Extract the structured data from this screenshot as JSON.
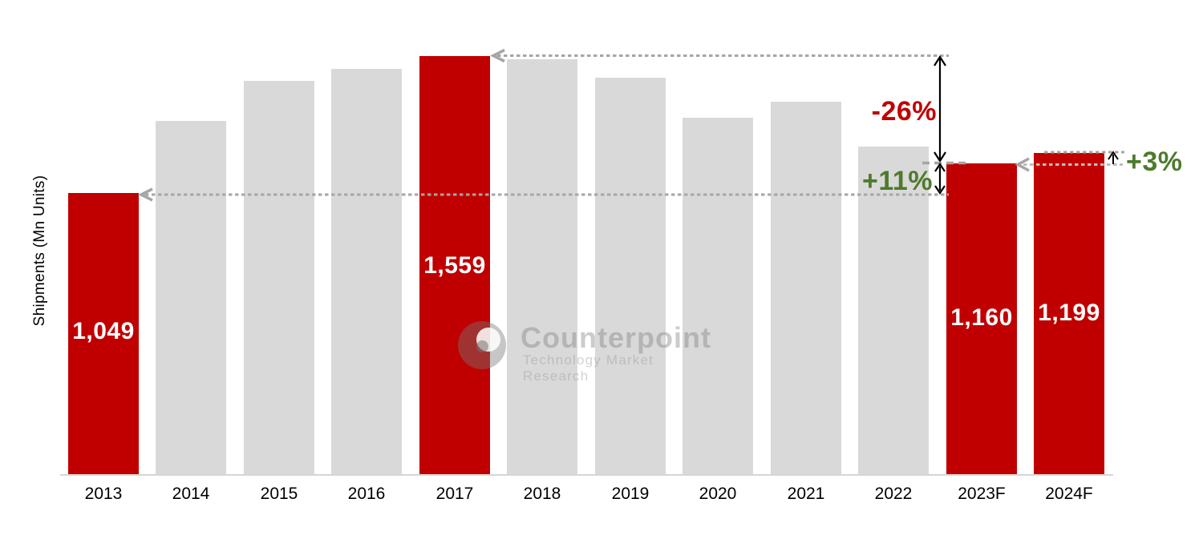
{
  "chart_data": {
    "type": "bar",
    "title": "",
    "ylabel": "Shipments (Mn Units)",
    "xlabel": "",
    "grid": false,
    "legend": "none",
    "ylim": [
      0,
      1770
    ],
    "categories": [
      "2013",
      "2014",
      "2015",
      "2016",
      "2017",
      "2018",
      "2019",
      "2020",
      "2021",
      "2022",
      "2023F",
      "2024F"
    ],
    "values": [
      1049,
      1317,
      1465,
      1512,
      1559,
      1546,
      1478,
      1330,
      1390,
      1220,
      1160,
      1199
    ],
    "highlight_categories": [
      "2013",
      "2017",
      "2023F",
      "2024F"
    ],
    "value_labels": {
      "2013": "1,049",
      "2017": "1,559",
      "2023F": "1,160",
      "2024F": "1,199"
    },
    "colors": {
      "highlight_bar": "#C00000",
      "default_bar": "#D9D9D9",
      "value_label_text": "#FFFFFF",
      "axis_line": "#D6D6D6",
      "dashed_line": "#A6A6A6",
      "arrow_black": "#000000",
      "decline_text": "#C00000",
      "growth_text": "#4E7B2B",
      "tick_text": "#000000"
    },
    "annotations": [
      {
        "id": "decline-2017-to-2023",
        "text": "-26%",
        "color": "#C00000"
      },
      {
        "id": "growth-2013-to-2023",
        "text": "+11%",
        "color": "#4E7B2B"
      },
      {
        "id": "growth-2023-to-2024",
        "text": "+3%",
        "color": "#4E7B2B"
      }
    ]
  },
  "watermark": {
    "name": "Counterpoint",
    "tagline": "Technology Market Research"
  }
}
